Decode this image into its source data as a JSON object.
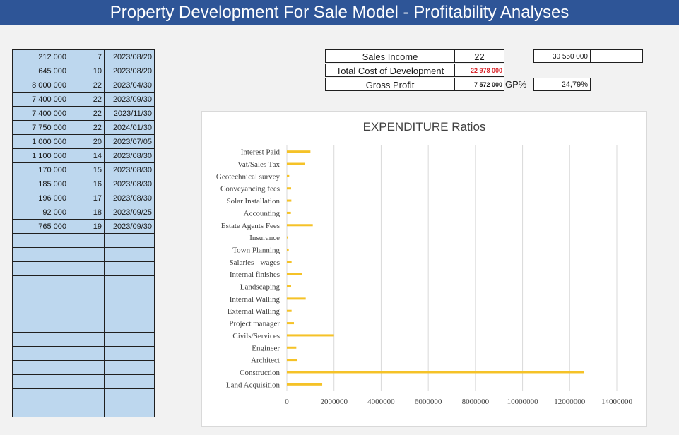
{
  "header": {
    "title": "Property Development For Sale Model - Profitability Analyses"
  },
  "left_table": {
    "rows": [
      {
        "amount": "212 000",
        "num": "7",
        "date": "2023/08/20"
      },
      {
        "amount": "645 000",
        "num": "10",
        "date": "2023/08/20"
      },
      {
        "amount": "8 000 000",
        "num": "22",
        "date": "2023/04/30"
      },
      {
        "amount": "7 400 000",
        "num": "22",
        "date": "2023/09/30"
      },
      {
        "amount": "7 400 000",
        "num": "22",
        "date": "2023/11/30"
      },
      {
        "amount": "7 750 000",
        "num": "22",
        "date": "2024/01/30"
      },
      {
        "amount": "1 000 000",
        "num": "20",
        "date": "2023/07/05"
      },
      {
        "amount": "1 100 000",
        "num": "14",
        "date": "2023/08/30"
      },
      {
        "amount": "170 000",
        "num": "15",
        "date": "2023/08/30"
      },
      {
        "amount": "185 000",
        "num": "16",
        "date": "2023/08/30"
      },
      {
        "amount": "196 000",
        "num": "17",
        "date": "2023/08/30"
      },
      {
        "amount": "92 000",
        "num": "18",
        "date": "2023/09/25"
      },
      {
        "amount": "765 000",
        "num": "19",
        "date": "2023/09/30"
      },
      {
        "amount": "",
        "num": "",
        "date": ""
      },
      {
        "amount": "",
        "num": "",
        "date": ""
      },
      {
        "amount": "",
        "num": "",
        "date": ""
      },
      {
        "amount": "",
        "num": "",
        "date": ""
      },
      {
        "amount": "",
        "num": "",
        "date": ""
      },
      {
        "amount": "",
        "num": "",
        "date": ""
      },
      {
        "amount": "",
        "num": "",
        "date": ""
      },
      {
        "amount": "",
        "num": "",
        "date": ""
      },
      {
        "amount": "",
        "num": "",
        "date": ""
      },
      {
        "amount": "",
        "num": "",
        "date": ""
      },
      {
        "amount": "",
        "num": "",
        "date": ""
      },
      {
        "amount": "",
        "num": "",
        "date": ""
      },
      {
        "amount": "",
        "num": "",
        "date": ""
      }
    ]
  },
  "summary": {
    "sales_income_label": "Sales Income",
    "sales_income_count": "22",
    "sales_income_value": "30 550 000",
    "total_cost_label": "Total Cost of Development",
    "total_cost_value": "22 978 000",
    "gross_profit_label": "Gross Profit",
    "gross_profit_value": "7 572 000",
    "gp_label": "GP%",
    "gp_value": "24,79%"
  },
  "colors": {
    "bar": "#f5c227",
    "banner": "#2e5597",
    "cell_fill": "#bdd7ee",
    "cost_text": "#d9262b"
  },
  "chart_data": {
    "type": "bar",
    "orientation": "horizontal",
    "title": "EXPENDITURE Ratios",
    "categories": [
      "Land Acquisition",
      "Construction",
      "Architect",
      "Engineer",
      "Civils/Services",
      "Project manager",
      "External Walling",
      "Internal Walling",
      "Landscaping",
      "Internal finishes",
      "Salaries - wages",
      "Town Planning",
      "Insurance",
      "Estate Agents Fees",
      "Accounting",
      "Solar Installation",
      "Conveyancing fees",
      "Geotechnical survey",
      "Vat/Sales Tax",
      "Interest Paid"
    ],
    "values": [
      1500000,
      12600000,
      450000,
      400000,
      2000000,
      300000,
      200000,
      800000,
      180000,
      650000,
      200000,
      80000,
      40000,
      1100000,
      170000,
      190000,
      180000,
      100000,
      750000,
      1000000
    ],
    "xlim": [
      0,
      14000000
    ],
    "xticks": [
      0,
      2000000,
      4000000,
      6000000,
      8000000,
      10000000,
      12000000,
      14000000
    ],
    "xtick_labels": [
      "0",
      "2000000",
      "4000000",
      "6000000",
      "8000000",
      "10000000",
      "12000000",
      "14000000"
    ],
    "grid": true,
    "legend": "none"
  }
}
